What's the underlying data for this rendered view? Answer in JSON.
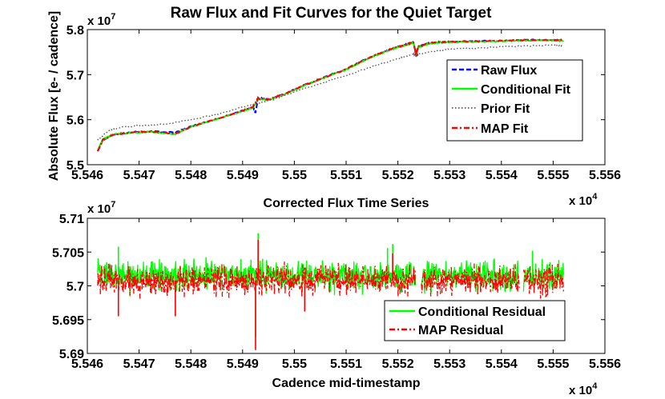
{
  "chart_data": [
    {
      "type": "line",
      "title": "Raw Flux and Fit Curves for the Quiet Target",
      "xlabel": "",
      "ylabel": "Absolute Flux [e- / cadence]",
      "x_exponent_label": "x 10",
      "x_exponent": "4",
      "y_exponent_label": "x 10",
      "y_exponent": "7",
      "xlim": [
        5.546,
        5.556
      ],
      "ylim": [
        5.5,
        5.8
      ],
      "xticks": [
        "5.546",
        "5.547",
        "5.548",
        "5.549",
        "5.55",
        "5.551",
        "5.552",
        "5.553",
        "5.554",
        "5.555",
        "5.556"
      ],
      "yticks": [
        "5.5",
        "5.6",
        "5.7",
        "5.8"
      ],
      "legend_position": "right",
      "legend": [
        "Raw Flux",
        "Conditional Fit",
        "Prior Fit",
        "MAP Fit"
      ],
      "series": [
        {
          "name": "Raw Flux",
          "color": "#0000ff",
          "dash": "dashed",
          "x": [
            5.5462,
            5.5463,
            5.5465,
            5.5468,
            5.5472,
            5.5477,
            5.548,
            5.5485,
            5.549,
            5.5492,
            5.54925,
            5.5493,
            5.5495,
            5.5498,
            5.5502,
            5.5506,
            5.551,
            5.5513,
            5.5516,
            5.5519,
            5.5521,
            5.5523,
            5.55235,
            5.5524,
            5.5526,
            5.5528,
            5.553,
            5.5535,
            5.554,
            5.5545,
            5.555,
            5.5552
          ],
          "y": [
            5.53,
            5.555,
            5.567,
            5.572,
            5.574,
            5.572,
            5.585,
            5.602,
            5.62,
            5.628,
            5.615,
            5.648,
            5.645,
            5.657,
            5.677,
            5.695,
            5.712,
            5.73,
            5.745,
            5.758,
            5.765,
            5.772,
            5.745,
            5.762,
            5.77,
            5.772,
            5.773,
            5.774,
            5.775,
            5.777,
            5.777,
            5.776
          ]
        },
        {
          "name": "Conditional Fit",
          "color": "#00ff00",
          "dash": "solid",
          "x": [
            5.5462,
            5.5463,
            5.5465,
            5.5468,
            5.5472,
            5.5477,
            5.548,
            5.5485,
            5.549,
            5.5492,
            5.5493,
            5.5495,
            5.5498,
            5.5502,
            5.5506,
            5.551,
            5.5513,
            5.5516,
            5.5519,
            5.5521,
            5.5523,
            5.55235,
            5.5524,
            5.5526,
            5.5528,
            5.553,
            5.5535,
            5.554,
            5.5545,
            5.555,
            5.5552
          ],
          "y": [
            5.532,
            5.556,
            5.567,
            5.571,
            5.573,
            5.568,
            5.584,
            5.601,
            5.619,
            5.627,
            5.646,
            5.644,
            5.656,
            5.676,
            5.694,
            5.711,
            5.729,
            5.744,
            5.757,
            5.764,
            5.771,
            5.748,
            5.761,
            5.769,
            5.771,
            5.772,
            5.773,
            5.774,
            5.776,
            5.776,
            5.775
          ]
        },
        {
          "name": "Prior Fit",
          "color": "#555555",
          "dash": "dotted",
          "x": [
            5.5462,
            5.5464,
            5.5466,
            5.547,
            5.5475,
            5.548,
            5.5485,
            5.549,
            5.5493,
            5.5496,
            5.55,
            5.5505,
            5.551,
            5.5515,
            5.552,
            5.5523,
            5.55235,
            5.5524,
            5.5527,
            5.553,
            5.5535,
            5.554,
            5.5545,
            5.555,
            5.5552
          ],
          "y": [
            5.555,
            5.575,
            5.582,
            5.587,
            5.59,
            5.6,
            5.612,
            5.628,
            5.637,
            5.645,
            5.662,
            5.68,
            5.698,
            5.718,
            5.735,
            5.746,
            5.742,
            5.745,
            5.752,
            5.757,
            5.759,
            5.762,
            5.764,
            5.765,
            5.764
          ]
        },
        {
          "name": "MAP Fit",
          "color": "#ff0000",
          "dash": "dashdot",
          "x": [
            5.5462,
            5.5463,
            5.5465,
            5.5468,
            5.5472,
            5.5477,
            5.548,
            5.5485,
            5.549,
            5.5492,
            5.5493,
            5.5495,
            5.5498,
            5.5502,
            5.5506,
            5.551,
            5.5513,
            5.5516,
            5.5519,
            5.5521,
            5.5523,
            5.55235,
            5.5524,
            5.5526,
            5.5528,
            5.553,
            5.5535,
            5.554,
            5.5545,
            5.555,
            5.5552
          ],
          "y": [
            5.531,
            5.555,
            5.566,
            5.571,
            5.573,
            5.569,
            5.584,
            5.602,
            5.62,
            5.628,
            5.647,
            5.645,
            5.657,
            5.677,
            5.695,
            5.712,
            5.73,
            5.745,
            5.758,
            5.765,
            5.772,
            5.746,
            5.762,
            5.77,
            5.772,
            5.773,
            5.774,
            5.775,
            5.777,
            5.777,
            5.776
          ]
        }
      ]
    },
    {
      "type": "line",
      "title": "Corrected Flux Time Series",
      "xlabel": "Cadence mid-timestamp",
      "ylabel": "",
      "x_exponent_label": "x 10",
      "x_exponent": "4",
      "y_exponent_label": "x 10",
      "y_exponent": "7",
      "xlim": [
        5.546,
        5.556
      ],
      "ylim": [
        5.69,
        5.71
      ],
      "xticks": [
        "5.546",
        "5.547",
        "5.548",
        "5.549",
        "5.55",
        "5.551",
        "5.552",
        "5.553",
        "5.554",
        "5.555",
        "5.556"
      ],
      "yticks": [
        "5.69",
        "5.695",
        "5.7",
        "5.705",
        "5.71"
      ],
      "legend_position": "bottom-right",
      "legend": [
        "Conditional Residual",
        "MAP Residual"
      ],
      "noise": {
        "n_points": 1200,
        "x_start": 5.5462,
        "x_end": 5.5552,
        "gaps": [
          [
            5.55235,
            5.55245
          ],
          [
            5.55435,
            5.55442
          ]
        ]
      },
      "series": [
        {
          "name": "Conditional Residual",
          "color": "#00ff00",
          "dash": "solid",
          "center": 5.7015,
          "amplitude": 0.0019,
          "spikes": [
            {
              "x": 5.5493,
              "y": 5.7078
            },
            {
              "x": 5.54925,
              "y": 5.6925
            },
            {
              "x": 5.5466,
              "y": 5.7058
            },
            {
              "x": 5.5519,
              "y": 5.7062
            },
            {
              "x": 5.5518,
              "y": 5.7056
            },
            {
              "x": 5.5546,
              "y": 5.7052
            }
          ]
        },
        {
          "name": "MAP Residual",
          "color": "#ff0000",
          "dash": "dashdot",
          "center": 5.7008,
          "amplitude": 0.0019,
          "spikes": [
            {
              "x": 5.54925,
              "y": 5.6905
            },
            {
              "x": 5.5466,
              "y": 5.6955
            },
            {
              "x": 5.5477,
              "y": 5.6955
            },
            {
              "x": 5.5493,
              "y": 5.7068
            },
            {
              "x": 5.5519,
              "y": 5.7048
            },
            {
              "x": 5.5502,
              "y": 5.6962
            }
          ]
        }
      ]
    }
  ]
}
